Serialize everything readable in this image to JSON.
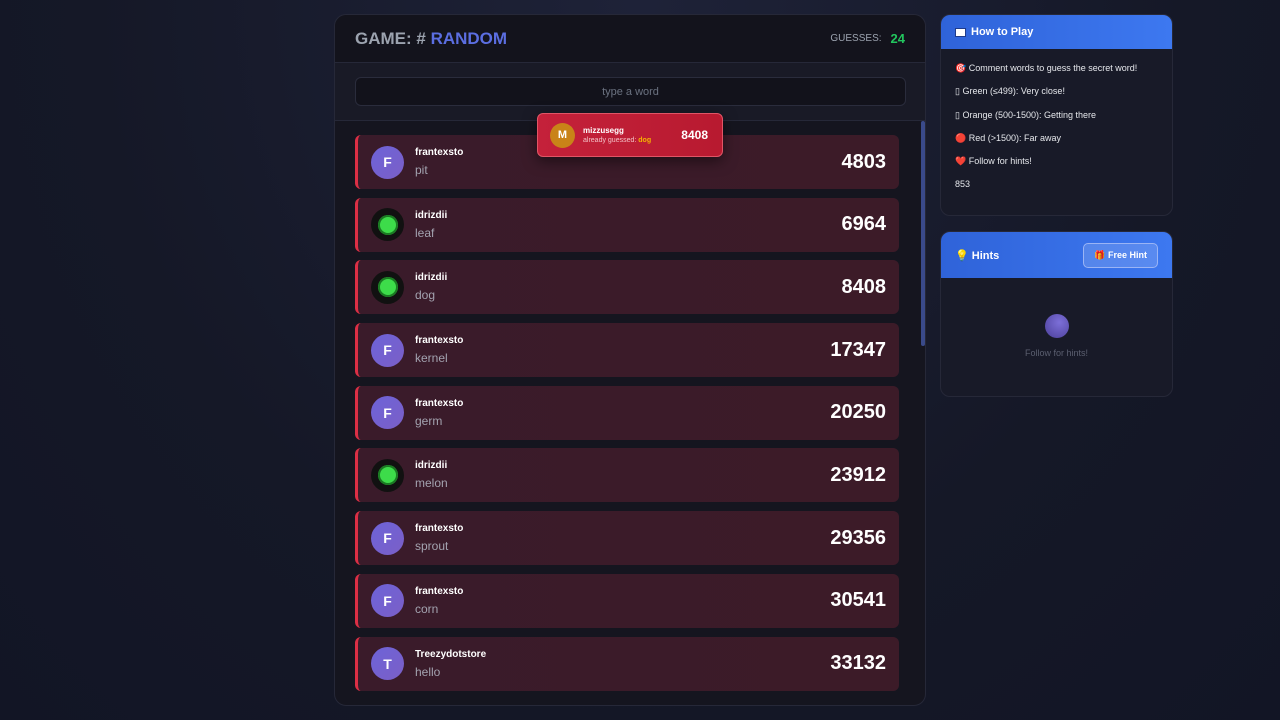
{
  "game": {
    "label": "GAME: #",
    "name": "RANDOM",
    "guesses_label": "GUESSES:",
    "guesses": "24",
    "placeholder": "type a word"
  },
  "toast": {
    "initial": "M",
    "user": "mizzusegg",
    "message": "already guessed:",
    "word": "dog",
    "score": "8408"
  },
  "guesses": [
    {
      "initial": "F",
      "user": "frantexsto",
      "word": "pit",
      "score": "4803",
      "avatar": "letter"
    },
    {
      "initial": "",
      "user": "idrizdii",
      "word": "leaf",
      "score": "6964",
      "avatar": "image"
    },
    {
      "initial": "",
      "user": "idrizdii",
      "word": "dog",
      "score": "8408",
      "avatar": "image"
    },
    {
      "initial": "F",
      "user": "frantexsto",
      "word": "kernel",
      "score": "17347",
      "avatar": "letter"
    },
    {
      "initial": "F",
      "user": "frantexsto",
      "word": "germ",
      "score": "20250",
      "avatar": "letter"
    },
    {
      "initial": "",
      "user": "idrizdii",
      "word": "melon",
      "score": "23912",
      "avatar": "image"
    },
    {
      "initial": "F",
      "user": "frantexsto",
      "word": "sprout",
      "score": "29356",
      "avatar": "letter"
    },
    {
      "initial": "F",
      "user": "frantexsto",
      "word": "corn",
      "score": "30541",
      "avatar": "letter"
    },
    {
      "initial": "T",
      "user": "Treezydotstore",
      "word": "hello",
      "score": "33132",
      "avatar": "letter"
    }
  ],
  "how_to_play": {
    "title": "How to Play",
    "icon": "book-icon",
    "lines": [
      "🎯 Comment words to guess the secret word!",
      "▯ Green (≤499): Very close!",
      "▯ Orange (500-1500): Getting there",
      "🔴 Red (>1500): Far away",
      "❤️ Follow for hints!",
      "853"
    ]
  },
  "hints": {
    "title": "Hints",
    "icon": "lightbulb-icon",
    "button": "🎁 Free Hint",
    "empty": "Follow for hints!"
  },
  "colors": {
    "accent": "#5b6ee1",
    "guess_count": "#22c55e",
    "far": "#dc2f45",
    "header_blue": "#3d78f0"
  }
}
